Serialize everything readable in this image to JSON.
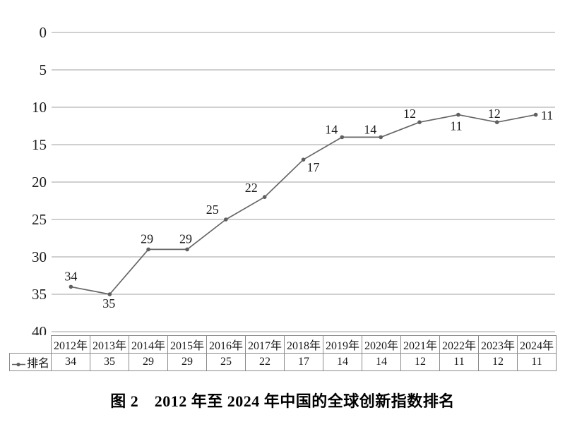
{
  "figure": {
    "caption": "图 2　2012 年至 2024 年中国的全球创新指数排名"
  },
  "chart_data": {
    "type": "line",
    "title": "",
    "xlabel": "",
    "ylabel": "",
    "categories": [
      "2012年",
      "2013年",
      "2014年",
      "2015年",
      "2016年",
      "2017年",
      "2018年",
      "2019年",
      "2020年",
      "2021年",
      "2022年",
      "2023年",
      "2024年"
    ],
    "series": [
      {
        "name": "排名",
        "values": [
          34,
          35,
          29,
          29,
          25,
          22,
          17,
          14,
          14,
          12,
          11,
          12,
          11
        ]
      }
    ],
    "data_labels": [
      34,
      35,
      29,
      29,
      25,
      22,
      17,
      14,
      14,
      12,
      11,
      12,
      11
    ],
    "ylim": [
      0,
      40
    ],
    "yticks": [
      0,
      5,
      10,
      15,
      20,
      25,
      30,
      35,
      40
    ],
    "y_axis_direction": "reversed (0 at top, 40 at bottom)",
    "grid": "horizontal gridlines on",
    "legend_position": "table row header at bottom-left",
    "colors": {
      "line": "#666666",
      "marker": "#5f5f5f",
      "gridline": "#b5b5b5",
      "label_text": "#1a1a1a",
      "table_border": "#8a8a8a"
    }
  },
  "table": {
    "legend_label": "排名"
  }
}
